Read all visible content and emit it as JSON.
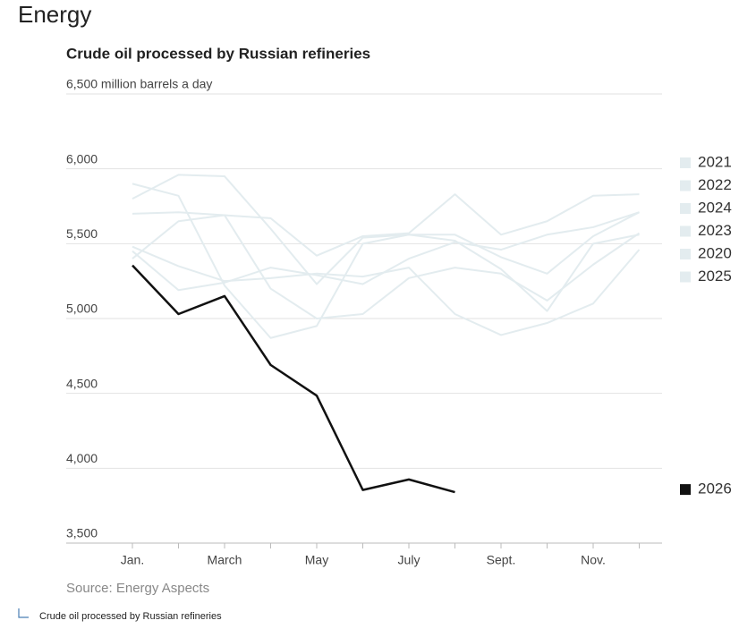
{
  "header": {
    "title": "Energy"
  },
  "chart_data": {
    "type": "line",
    "title": "Crude oil processed by Russian refineries",
    "categories": [
      "Jan.",
      null,
      "March",
      null,
      "May",
      null,
      "July",
      null,
      "Sept.",
      null,
      "Nov.",
      null
    ],
    "ylim": [
      3500,
      6500
    ],
    "yticks": [
      {
        "value": 3500,
        "label": "3,500"
      },
      {
        "value": 4000,
        "label": "4,000"
      },
      {
        "value": 4500,
        "label": "4,500"
      },
      {
        "value": 5000,
        "label": "5,000"
      },
      {
        "value": 5500,
        "label": "5,500"
      },
      {
        "value": 6000,
        "label": "6,000"
      },
      {
        "value": 6500,
        "label": "6,500 million barrels a day"
      }
    ],
    "grid": true,
    "series": [
      {
        "name": "2021",
        "color": "#e3ecef",
        "values": [
          5900,
          5820,
          5220,
          4870,
          4950,
          5500,
          5560,
          5520,
          5330,
          5050,
          5500,
          5560
        ]
      },
      {
        "name": "2022",
        "color": "#e3ecef",
        "values": [
          5800,
          5960,
          5950,
          5600,
          5230,
          5540,
          5560,
          5560,
          5410,
          5300,
          5550,
          5710
        ]
      },
      {
        "name": "2024",
        "color": "#e3ecef",
        "values": [
          5700,
          5710,
          5690,
          5670,
          5420,
          5550,
          5570,
          5830,
          5560,
          5650,
          5820,
          5830
        ]
      },
      {
        "name": "2023",
        "color": "#e3ecef",
        "values": [
          5450,
          5190,
          5240,
          5340,
          5290,
          5230,
          5400,
          5510,
          5460,
          5560,
          5610,
          5710
        ]
      },
      {
        "name": "2020",
        "color": "#e3ecef",
        "values": [
          5400,
          5650,
          5690,
          5200,
          5000,
          5030,
          5270,
          5340,
          5300,
          5120,
          5360,
          5570
        ]
      },
      {
        "name": "2025",
        "color": "#e3ecef",
        "values": [
          5480,
          5350,
          5250,
          5270,
          5300,
          5280,
          5340,
          5030,
          4890,
          4970,
          5100,
          5460
        ]
      },
      {
        "name": "2026",
        "color": "#111111",
        "values": [
          5355,
          5030,
          5150,
          4690,
          4485,
          3855,
          3925,
          3840,
          null,
          null,
          null,
          null
        ]
      }
    ]
  },
  "source": "Source: Energy Aspects",
  "caption": "Crude oil processed by Russian refineries"
}
